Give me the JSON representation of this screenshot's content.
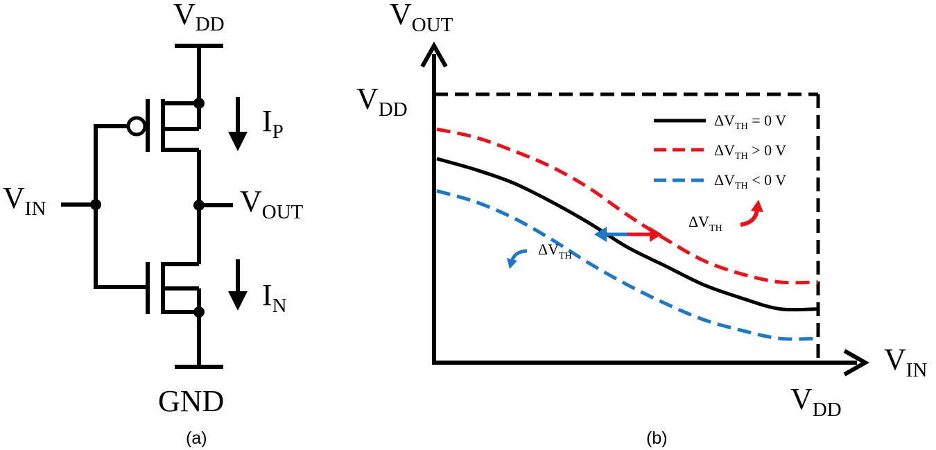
{
  "panel_a": {
    "caption": "(a)",
    "vdd": {
      "main": "V",
      "sub": "DD"
    },
    "gnd": "GND",
    "vin": {
      "main": "V",
      "sub": "IN"
    },
    "vout": {
      "main": "V",
      "sub": "OUT"
    },
    "ip": {
      "main": "I",
      "sub": "P"
    },
    "in": {
      "main": "I",
      "sub": "N"
    }
  },
  "panel_b": {
    "caption": "(b)",
    "y_axis": {
      "main": "V",
      "sub": "OUT"
    },
    "x_axis": {
      "main": "V",
      "sub": "IN"
    },
    "y_tick": {
      "main": "V",
      "sub": "DD"
    },
    "x_tick": {
      "main": "V",
      "sub": "DD"
    },
    "annotation": {
      "main": "ΔV",
      "sub": "TH"
    }
  },
  "chart_data": {
    "type": "line",
    "xlim": [
      0,
      1
    ],
    "ylim": [
      0,
      1
    ],
    "x": [
      0,
      0.1,
      0.2,
      0.3,
      0.4,
      0.5,
      0.6,
      0.7,
      0.8,
      0.9,
      1.0
    ],
    "series": [
      {
        "name": "ΔV_TH = 0 V",
        "label_main": "ΔV",
        "label_sub": "TH",
        "label_rest": " = 0 V",
        "color": "#000000",
        "dash": false,
        "values": [
          0.76,
          0.72,
          0.67,
          0.6,
          0.52,
          0.43,
          0.36,
          0.29,
          0.24,
          0.2,
          0.2
        ]
      },
      {
        "name": "ΔV_TH > 0 V",
        "label_main": "ΔV",
        "label_sub": "TH",
        "label_rest": " > 0 V",
        "color": "#e8141b",
        "dash": true,
        "values": [
          0.87,
          0.84,
          0.79,
          0.73,
          0.65,
          0.55,
          0.46,
          0.38,
          0.33,
          0.3,
          0.3
        ]
      },
      {
        "name": "ΔV_TH < 0 V",
        "label_main": "ΔV",
        "label_sub": "TH",
        "label_rest": " < 0 V",
        "color": "#1f77c8",
        "dash": true,
        "values": [
          0.64,
          0.6,
          0.54,
          0.46,
          0.37,
          0.29,
          0.22,
          0.16,
          0.12,
          0.09,
          0.09
        ]
      }
    ],
    "colors": {
      "black": "#000000",
      "red": "#e8141b",
      "blue": "#1f77c8"
    },
    "legend_position": "top-right"
  }
}
